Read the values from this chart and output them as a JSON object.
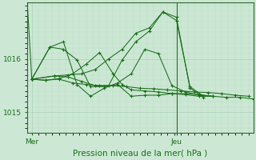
{
  "xlabel": "Pression niveau de la mer( hPa )",
  "background_color": "#cce8d4",
  "grid_color_major": "#aacfb8",
  "grid_color_minor": "#b8dbc4",
  "line_color": "#1a6e1a",
  "ytick_labels": [
    "1015",
    "1016"
  ],
  "ytick_values": [
    1015.0,
    1016.0
  ],
  "xtick_labels": [
    "Mer",
    "Jeu"
  ],
  "xtick_positions": [
    0,
    32
  ],
  "xlim": [
    -1,
    49
  ],
  "ylim": [
    1014.62,
    1017.05
  ],
  "vline_x": 32,
  "series": [
    [
      -1,
      1017.05,
      0,
      1015.62,
      3,
      1015.6,
      6,
      1015.63,
      9,
      1015.72,
      12,
      1015.9,
      15,
      1016.12,
      18,
      1015.72,
      20,
      1015.52,
      22,
      1015.42,
      25,
      1015.4,
      28,
      1015.38,
      31,
      1015.35,
      34,
      1015.33,
      37,
      1015.3,
      40,
      1015.3,
      43,
      1015.28,
      46,
      1015.28,
      49,
      1015.25
    ],
    [
      0,
      1015.62,
      3,
      1015.6,
      6,
      1015.62,
      9,
      1015.55,
      12,
      1015.52,
      15,
      1015.5,
      18,
      1015.5,
      21,
      1015.48,
      24,
      1015.45,
      27,
      1015.44,
      30,
      1015.42,
      33,
      1015.4,
      36,
      1015.38,
      39,
      1015.37,
      42,
      1015.35,
      45,
      1015.32,
      48,
      1015.3
    ],
    [
      0,
      1015.62,
      4,
      1016.22,
      7,
      1016.32,
      10,
      1015.52,
      13,
      1015.3,
      16,
      1015.45,
      19,
      1015.55,
      22,
      1015.72,
      25,
      1016.18,
      28,
      1016.1,
      31,
      1015.5,
      34,
      1015.38,
      37,
      1015.32,
      40,
      1015.3
    ],
    [
      0,
      1015.62,
      4,
      1016.22,
      7,
      1016.18,
      10,
      1015.98,
      13,
      1015.48,
      16,
      1015.48,
      19,
      1015.52,
      22,
      1015.3,
      25,
      1015.32,
      28,
      1015.32,
      31,
      1015.35,
      34,
      1015.35,
      37,
      1015.33,
      40,
      1015.3
    ],
    [
      0,
      1015.62,
      5,
      1015.68,
      8,
      1015.7,
      11,
      1015.72,
      14,
      1015.8,
      17,
      1016.0,
      20,
      1016.18,
      23,
      1016.48,
      26,
      1016.58,
      29,
      1016.88,
      32,
      1016.72,
      35,
      1015.48,
      38,
      1015.3
    ],
    [
      0,
      1015.62,
      5,
      1015.68,
      8,
      1015.66,
      11,
      1015.58,
      14,
      1015.5,
      17,
      1015.5,
      20,
      1015.98,
      23,
      1016.32,
      26,
      1016.52,
      29,
      1016.88,
      32,
      1016.78,
      35,
      1015.45,
      38,
      1015.28
    ]
  ],
  "spine_color": "#336633"
}
